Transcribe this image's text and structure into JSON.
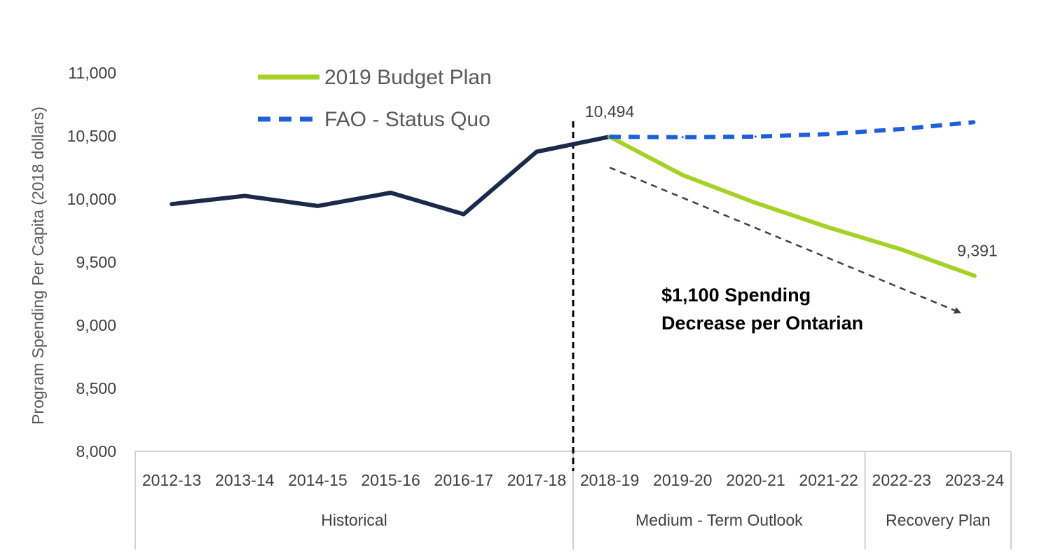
{
  "chart_data": {
    "type": "line",
    "ylabel": "Program Spending Per Capita (2018 dollars)",
    "ylim": [
      8000,
      11000
    ],
    "y_ticks": [
      "8,000",
      "8,500",
      "9,000",
      "9,500",
      "10,000",
      "10,500",
      "11,000"
    ],
    "categories": [
      "2012-13",
      "2013-14",
      "2014-15",
      "2015-16",
      "2016-17",
      "2017-18",
      "2018-19",
      "2019-20",
      "2020-21",
      "2021-22",
      "2022-23",
      "2023-24"
    ],
    "groups": [
      {
        "label": "Historical",
        "start": 0,
        "end": 5
      },
      {
        "label": "Medium - Term Outlook",
        "start": 6,
        "end": 9
      },
      {
        "label": "Recovery Plan",
        "start": 10,
        "end": 11
      }
    ],
    "series": [
      {
        "id": "historical",
        "color": "#1b2a4a",
        "style": "solid",
        "values": [
          9960,
          10025,
          9945,
          10050,
          9880,
          10375,
          10494,
          null,
          null,
          null,
          null,
          null
        ]
      },
      {
        "id": "budget",
        "name": "2019 Budget Plan",
        "color": "#a6d228",
        "style": "solid",
        "values": [
          null,
          null,
          null,
          null,
          null,
          null,
          10494,
          10190,
          9970,
          9775,
          9600,
          9391
        ]
      },
      {
        "id": "status_quo",
        "name": "FAO - Status Quo",
        "color": "#1f5fd6",
        "style": "dashed",
        "values": [
          null,
          null,
          null,
          null,
          null,
          null,
          10494,
          10490,
          10495,
          10515,
          10555,
          10610
        ]
      }
    ],
    "data_labels": [
      {
        "series": "historical",
        "index": 6,
        "text": "10,494"
      },
      {
        "series": "budget",
        "index": 11,
        "text": "9,391"
      }
    ],
    "divider_after_index": 5,
    "annotation": {
      "lines": [
        "$1,100 Spending",
        "Decrease per Ontarian"
      ],
      "arrow_from": {
        "index": 6,
        "value": 10250
      },
      "arrow_to": {
        "index": 10.8,
        "value": 9100
      }
    },
    "legend": {
      "position": "top-left"
    }
  }
}
